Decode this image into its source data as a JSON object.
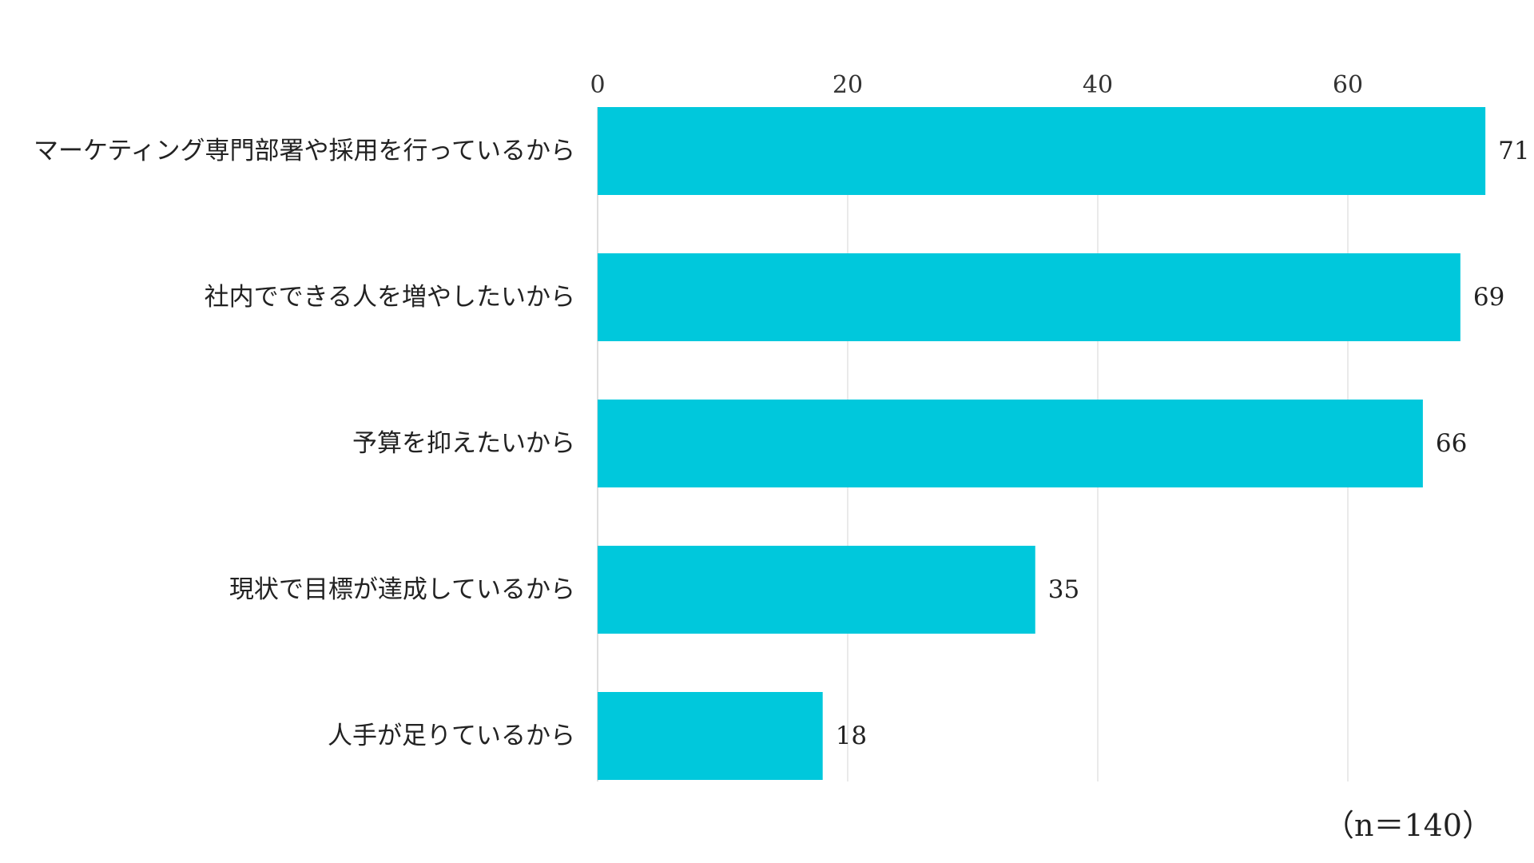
{
  "chart_data": {
    "type": "bar",
    "orientation": "horizontal",
    "categories": [
      "マーケティング専門部署や採用を行っているから",
      "社内でできる人を増やしたいから",
      "予算を抑えたいから",
      "現状で目標が達成しているから",
      "人手が足りているから"
    ],
    "values": [
      71,
      69,
      66,
      35,
      18
    ],
    "x_ticks": [
      0,
      20,
      40,
      60
    ],
    "xlim": [
      0,
      71
    ],
    "x_axis_position": "top",
    "grid": true,
    "legend": "none",
    "bar_color": "#00C8DC",
    "data_labels": true
  },
  "note": "（n＝140）"
}
